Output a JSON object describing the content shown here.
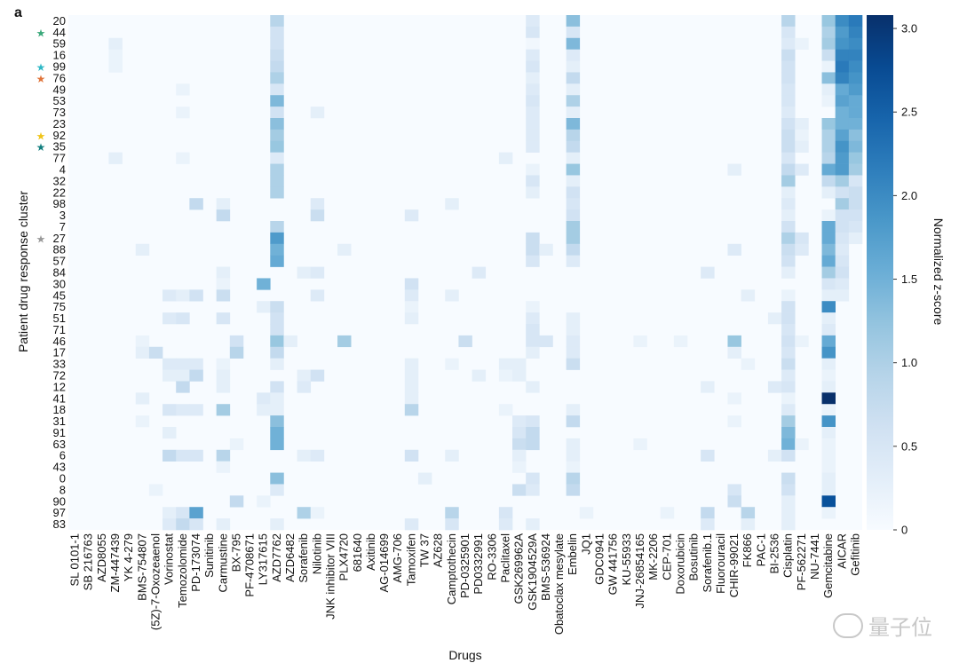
{
  "panel_label": "a",
  "watermark": {
    "text": "量子位",
    "icon": "wechat-icon"
  },
  "colors": {
    "low": "#f7fbff",
    "high": "#08306b",
    "star_green": "#3aa87a",
    "star_cyan": "#2fb8c6",
    "star_orange": "#e0743a",
    "star_yellow": "#f0c419",
    "star_teal": "#127f7f",
    "star_grey": "#999999"
  },
  "chart_data": {
    "type": "heatmap",
    "title": "",
    "xlabel": "Drugs",
    "ylabel": "Patient drug response cluster",
    "colorbar": {
      "label": "Normalized z-score",
      "range": [
        0,
        3.08
      ],
      "ticks": [
        "0",
        "0.5",
        "1.0",
        "1.5",
        "2.0",
        "2.5",
        "3.0"
      ]
    },
    "rows": [
      "20",
      "44",
      "59",
      "16",
      "99",
      "76",
      "49",
      "53",
      "73",
      "23",
      "92",
      "35",
      "77",
      "4",
      "32",
      "22",
      "98",
      "3",
      "7",
      "27",
      "88",
      "57",
      "84",
      "30",
      "45",
      "75",
      "51",
      "71",
      "46",
      "17",
      "33",
      "72",
      "12",
      "41",
      "18",
      "31",
      "91",
      "63",
      "6",
      "43",
      "0",
      "8",
      "90",
      "97",
      "83"
    ],
    "starred_rows": [
      {
        "row": "44",
        "color": "green"
      },
      {
        "row": "99",
        "color": "cyan"
      },
      {
        "row": "76",
        "color": "orange"
      },
      {
        "row": "92",
        "color": "yellow"
      },
      {
        "row": "35",
        "color": "teal"
      },
      {
        "row": "27",
        "color": "grey"
      }
    ],
    "columns": [
      "SL 0101-1",
      "SB 216763",
      "AZD8055",
      "ZM-447439",
      "YK 4-279",
      "BMS-754807",
      "(5Z)-7-Oxozeaenol",
      "Vorinostat",
      "Temozolomide",
      "PD-173074",
      "Sunitinib",
      "Carmustine",
      "BX-795",
      "PF-4708671",
      "LY317615",
      "AZD7762",
      "AZD6482",
      "Sorafenib",
      "Nilotinib",
      "JNK inhibitor VIII",
      "PLX4720",
      "681640",
      "Axitinib",
      "AG-014699",
      "AMG-706",
      "Tamoxifen",
      "TW 37",
      "AZ628",
      "Camptothecin",
      "PD-0325901",
      "PD0332991",
      "RO-3306",
      "Paclitaxel",
      "GSK269962A",
      "GSK1904529A",
      "BMS-536924",
      "Obatoclax mesylate",
      "Embelin",
      "JQ1",
      "GDC0941",
      "GW 441756",
      "KU-55933",
      "JNJ-26854165",
      "MK-2206",
      "CEP-701",
      "Doxorubicin",
      "Bosutinib",
      "Sorafenib.1",
      "Fluorouracil",
      "CHIR-99021",
      "FK866",
      "PAC-1",
      "BI-2536",
      "Cisplatin",
      "PF-562271",
      "NU-7441",
      "Gemcitabine",
      "AICAR",
      "Gefitinib"
    ],
    "values": {
      "20": {
        "AZD7762": 0.9,
        "GSK1904529A": 0.4,
        "Embelin": 1.3,
        "Cisplatin": 0.9,
        "Gemcitabine": 1.2,
        "AICAR": 2.0,
        "Gefitinib": 2.2
      },
      "44": {
        "AZD7762": 0.6,
        "GSK1904529A": 0.5,
        "Embelin": 0.5,
        "Cisplatin": 0.5,
        "Gemcitabine": 1.0,
        "AICAR": 1.8,
        "Gefitinib": 2.1
      },
      "59": {
        "ZM-447439": 0.3,
        "AZD7762": 0.6,
        "GSK1904529A": 0.1,
        "Embelin": 1.4,
        "Cisplatin": 0.4,
        "PF-562271": 0.2,
        "Gemcitabine": 1.1,
        "AICAR": 1.9,
        "Gefitinib": 2.0
      },
      "16": {
        "ZM-447439": 0.2,
        "AZD7762": 0.7,
        "GSK1904529A": 0.4,
        "Embelin": 0.4,
        "Cisplatin": 0.7,
        "Gemcitabine": 0.7,
        "AICAR": 2.1,
        "Gefitinib": 2.1
      },
      "99": {
        "ZM-447439": 0.2,
        "AZD7762": 0.8,
        "GSK1904529A": 0.5,
        "Embelin": 0.3,
        "Cisplatin": 0.6,
        "Gemcitabine": 0.2,
        "AICAR": 2.2,
        "Gefitinib": 2.0
      },
      "76": {
        "AZD7762": 1.0,
        "GSK1904529A": 0.3,
        "Embelin": 0.8,
        "Cisplatin": 0.6,
        "Gemcitabine": 1.3,
        "AICAR": 2.1,
        "Gefitinib": 1.9
      },
      "49": {
        "Temozolomide": 0.2,
        "AZD7762": 0.5,
        "GSK1904529A": 0.4,
        "Embelin": 0.3,
        "Cisplatin": 0.5,
        "Gemcitabine": 0.3,
        "AICAR": 1.6,
        "Gefitinib": 1.8
      },
      "53": {
        "AZD7762": 1.4,
        "GSK1904529A": 0.5,
        "Embelin": 1.0,
        "Cisplatin": 0.5,
        "Gemcitabine": 0.2,
        "AICAR": 1.7,
        "Gefitinib": 1.6
      },
      "73": {
        "Temozolomide": 0.2,
        "AZD7762": 0.6,
        "Nilotinib": 0.3,
        "GSK1904529A": 0.4,
        "Embelin": 0.3,
        "Cisplatin": 0.4,
        "AICAR": 1.5,
        "Gefitinib": 1.6
      },
      "23": {
        "AZD7762": 1.3,
        "GSK1904529A": 0.4,
        "Embelin": 1.4,
        "Cisplatin": 0.6,
        "PF-562271": 0.3,
        "Gemcitabine": 1.2,
        "AICAR": 1.5,
        "Gefitinib": 1.5
      },
      "92": {
        "AZD7762": 1.1,
        "GSK1904529A": 0.4,
        "Embelin": 0.9,
        "Cisplatin": 0.7,
        "PF-562271": 0.2,
        "Gemcitabine": 1.0,
        "AICAR": 1.7,
        "Gefitinib": 1.3
      },
      "35": {
        "AZD7762": 1.2,
        "GSK1904529A": 0.4,
        "Embelin": 0.8,
        "Cisplatin": 0.7,
        "PF-562271": 0.3,
        "Gemcitabine": 1.0,
        "AICAR": 1.9,
        "Gefitinib": 1.4
      },
      "77": {
        "ZM-447439": 0.3,
        "Temozolomide": 0.2,
        "AZD7762": 0.4,
        "Paclitaxel": 0.3,
        "Embelin": 0.3,
        "Cisplatin": 0.5,
        "Gemcitabine": 0.9,
        "AICAR": 1.8,
        "Gefitinib": 1.2
      },
      "4": {
        "AZD7762": 1.0,
        "GSK1904529A": 0.2,
        "Embelin": 1.2,
        "CHIR-99021": 0.3,
        "Cisplatin": 0.8,
        "PF-562271": 0.4,
        "Gemcitabine": 1.6,
        "AICAR": 1.8,
        "Gefitinib": 1.1
      },
      "32": {
        "AZD7762": 1.0,
        "GSK1904529A": 0.5,
        "Embelin": 0.3,
        "Cisplatin": 1.1,
        "Gemcitabine": 0.8,
        "AICAR": 1.1,
        "Gefitinib": 0.5
      },
      "22": {
        "AZD7762": 1.0,
        "GSK1904529A": 0.3,
        "Embelin": 0.6,
        "Cisplatin": 0.3,
        "Gemcitabine": 0.3,
        "AICAR": 0.6,
        "Gefitinib": 0.7
      },
      "98": {
        "PD-173074": 0.8,
        "Carmustine": 0.3,
        "Nilotinib": 0.4,
        "Camptothecin": 0.3,
        "Embelin": 0.5,
        "Cisplatin": 0.4,
        "AICAR": 1.1,
        "Gefitinib": 0.7
      },
      "3": {
        "Carmustine": 0.8,
        "Nilotinib": 0.7,
        "Tamoxifen": 0.4,
        "Embelin": 0.6,
        "Cisplatin": 0.3,
        "Gemcitabine": 0.2,
        "AICAR": 0.6,
        "Gefitinib": 0.6
      },
      "7": {
        "AZD7762": 0.9,
        "Embelin": 1.1,
        "Cisplatin": 0.6,
        "Gemcitabine": 1.6,
        "AICAR": 0.6,
        "Gefitinib": 0.5
      },
      "27": {
        "AZD7762": 1.8,
        "GSK1904529A": 0.7,
        "Embelin": 1.1,
        "Cisplatin": 1.0,
        "PF-562271": 0.5,
        "Gemcitabine": 1.6,
        "AICAR": 0.5,
        "Gefitinib": 0.3
      },
      "88": {
        "BMS-754807": 0.3,
        "AZD7762": 1.5,
        "PLX4720": 0.3,
        "GSK1904529A": 0.7,
        "BMS-536924": 0.3,
        "Embelin": 0.8,
        "CHIR-99021": 0.4,
        "Cisplatin": 0.7,
        "PF-562271": 0.4,
        "Gemcitabine": 1.4,
        "AICAR": 0.4
      },
      "57": {
        "AZD7762": 1.6,
        "GSK1904529A": 0.5,
        "Embelin": 0.4,
        "Cisplatin": 0.6,
        "Gemcitabine": 1.6,
        "AICAR": 0.5
      },
      "84": {
        "Carmustine": 0.3,
        "Sorafenib": 0.3,
        "Nilotinib": 0.4,
        "PD0332991": 0.4,
        "Sorafenib.1": 0.4,
        "Cisplatin": 0.3,
        "Gemcitabine": 1.1,
        "AICAR": 0.6
      },
      "30": {
        "Carmustine": 0.2,
        "LY317615": 1.5,
        "Tamoxifen": 0.6,
        "Gemcitabine": 0.5,
        "AICAR": 0.4
      },
      "45": {
        "Vorinostat": 0.4,
        "Temozolomide": 0.3,
        "PD-173074": 0.6,
        "Carmustine": 0.7,
        "Nilotinib": 0.4,
        "Tamoxifen": 0.4,
        "Camptothecin": 0.3,
        "FK866": 0.3,
        "Cisplatin": 0.2,
        "Gemcitabine": 0.3,
        "AICAR": 0.3
      },
      "75": {
        "LY317615": 0.3,
        "AZD7762": 0.7,
        "Tamoxifen": 0.2,
        "GSK1904529A": 0.2,
        "Cisplatin": 0.6,
        "Gemcitabine": 2.0
      },
      "51": {
        "Vorinostat": 0.4,
        "Temozolomide": 0.5,
        "Carmustine": 0.5,
        "AZD7762": 0.6,
        "Tamoxifen": 0.3,
        "GSK1904529A": 0.4,
        "Embelin": 0.3,
        "Cisplatin": 0.6,
        "BI-2536": 0.3,
        "Gemcitabine": 0.3
      },
      "71": {
        "AZD7762": 0.6,
        "GSK1904529A": 0.5,
        "Embelin": 0.3,
        "Cisplatin": 0.5,
        "Gemcitabine": 0.4
      },
      "46": {
        "BMS-754807": 0.2,
        "BX-795": 0.6,
        "AZD7762": 1.2,
        "AZD6482": 0.3,
        "PLX4720": 1.1,
        "PD-0325901": 0.7,
        "GSK1904529A": 0.5,
        "BMS-536924": 0.5,
        "Embelin": 0.4,
        "JNJ-26854165": 0.2,
        "Doxorubicin": 0.2,
        "CHIR-99021": 1.2,
        "Cisplatin": 0.6,
        "PF-562271": 0.2,
        "Gemcitabine": 1.6
      },
      "17": {
        "BMS-754807": 0.3,
        "(5Z)-7-Oxozeaenol": 0.7,
        "BX-795": 0.9,
        "AZD7762": 0.8,
        "GSK1904529A": 0.3,
        "Embelin": 0.4,
        "CHIR-99021": 0.3,
        "Cisplatin": 0.5,
        "Gemcitabine": 1.9
      },
      "33": {
        "Vorinostat": 0.4,
        "Temozolomide": 0.4,
        "PD-173074": 0.4,
        "Carmustine": 0.2,
        "AZD7762": 0.3,
        "Tamoxifen": 0.3,
        "Camptothecin": 0.2,
        "Paclitaxel": 0.3,
        "GSK269962A": 0.3,
        "Embelin": 0.7,
        "FK866": 0.2,
        "Cisplatin": 0.7,
        "Gemcitabine": 0.3
      },
      "72": {
        "Vorinostat": 0.3,
        "Temozolomide": 0.3,
        "PD-173074": 0.8,
        "Carmustine": 0.3,
        "Sorafenib": 0.3,
        "Nilotinib": 0.6,
        "Tamoxifen": 0.3,
        "PD0332991": 0.3,
        "Paclitaxel": 0.2,
        "GSK269962A": 0.3,
        "Cisplatin": 0.4,
        "Gemcitabine": 0.2
      },
      "12": {
        "Temozolomide": 0.8,
        "Carmustine": 0.3,
        "AZD7762": 0.6,
        "Sorafenib": 0.4,
        "Tamoxifen": 0.3,
        "GSK1904529A": 0.3,
        "Sorafenib.1": 0.3,
        "BI-2536": 0.4,
        "Cisplatin": 0.5,
        "Gemcitabine": 0.3
      },
      "41": {
        "BMS-754807": 0.3,
        "LY317615": 0.4,
        "AZD7762": 0.3,
        "Tamoxifen": 0.3,
        "CHIR-99021": 0.2,
        "Cisplatin": 0.2,
        "Gemcitabine": 3.08
      },
      "18": {
        "Vorinostat": 0.5,
        "Temozolomide": 0.4,
        "PD-173074": 0.4,
        "Carmustine": 1.1,
        "LY317615": 0.3,
        "AZD7762": 0.3,
        "Tamoxifen": 0.9,
        "Paclitaxel": 0.2,
        "Embelin": 0.3,
        "Cisplatin": 0.4,
        "Gemcitabine": 0.2
      },
      "31": {
        "BMS-754807": 0.2,
        "AZD7762": 1.3,
        "GSK269962A": 0.4,
        "GSK1904529A": 0.5,
        "Embelin": 0.8,
        "CHIR-99021": 0.2,
        "Cisplatin": 1.1,
        "Gemcitabine": 1.9
      },
      "91": {
        "Vorinostat": 0.3,
        "AZD7762": 1.5,
        "GSK269962A": 0.5,
        "GSK1904529A": 0.8,
        "Cisplatin": 1.4,
        "Gemcitabine": 0.3
      },
      "63": {
        "BX-795": 0.2,
        "AZD7762": 1.5,
        "GSK269962A": 0.7,
        "GSK1904529A": 0.8,
        "Embelin": 0.3,
        "JNJ-26854165": 0.2,
        "Cisplatin": 1.5,
        "PF-562271": 0.2,
        "Gemcitabine": 0.2
      },
      "6": {
        "Vorinostat": 0.8,
        "Temozolomide": 0.5,
        "PD-173074": 0.5,
        "Carmustine": 0.9,
        "Sorafenib": 0.3,
        "Nilotinib": 0.4,
        "Tamoxifen": 0.6,
        "Camptothecin": 0.3,
        "GSK269962A": 0.3,
        "Embelin": 0.3,
        "Sorafenib.1": 0.5,
        "BI-2536": 0.3,
        "Cisplatin": 0.6,
        "Gemcitabine": 0.2
      },
      "43": {
        "Carmustine": 0.2,
        "GSK269962A": 0.2,
        "Embelin": 0.2,
        "Gemcitabine": 0.2
      },
      "0": {
        "AZD7762": 1.3,
        "TW 37": 0.3,
        "GSK1904529A": 0.5,
        "Embelin": 0.9,
        "Cisplatin": 0.7,
        "Gemcitabine": 0.3
      },
      "8": {
        "(5Z)-7-Oxozeaenol": 0.2,
        "AZD7762": 0.4,
        "GSK269962A": 0.7,
        "GSK1904529A": 0.4,
        "Embelin": 0.8,
        "CHIR-99021": 0.5,
        "Cisplatin": 0.6,
        "Gemcitabine": 0.3
      },
      "90": {
        "BX-795": 0.8,
        "LY317615": 0.2,
        "CHIR-99021": 0.7,
        "Cisplatin": 0.3,
        "Gemcitabine": 2.7
      },
      "97": {
        "Vorinostat": 0.3,
        "Temozolomide": 0.5,
        "PD-173074": 1.7,
        "Sorafenib": 1.0,
        "Nilotinib": 0.2,
        "Camptothecin": 0.9,
        "Paclitaxel": 0.5,
        "JQ1": 0.2,
        "CEP-701": 0.2,
        "Sorafenib.1": 0.8,
        "FK866": 0.9,
        "Cisplatin": 0.3,
        "Gemcitabine": 0.2
      },
      "83": {
        "Vorinostat": 0.4,
        "Temozolomide": 0.8,
        "PD-173074": 0.5,
        "Carmustine": 0.3,
        "AZD7762": 0.3,
        "Tamoxifen": 0.4,
        "Camptothecin": 0.5,
        "Paclitaxel": 0.4,
        "GSK1904529A": 0.3,
        "Sorafenib.1": 0.4,
        "FK866": 0.3,
        "Cisplatin": 0.3
      }
    },
    "legend": "colorbar-right"
  }
}
